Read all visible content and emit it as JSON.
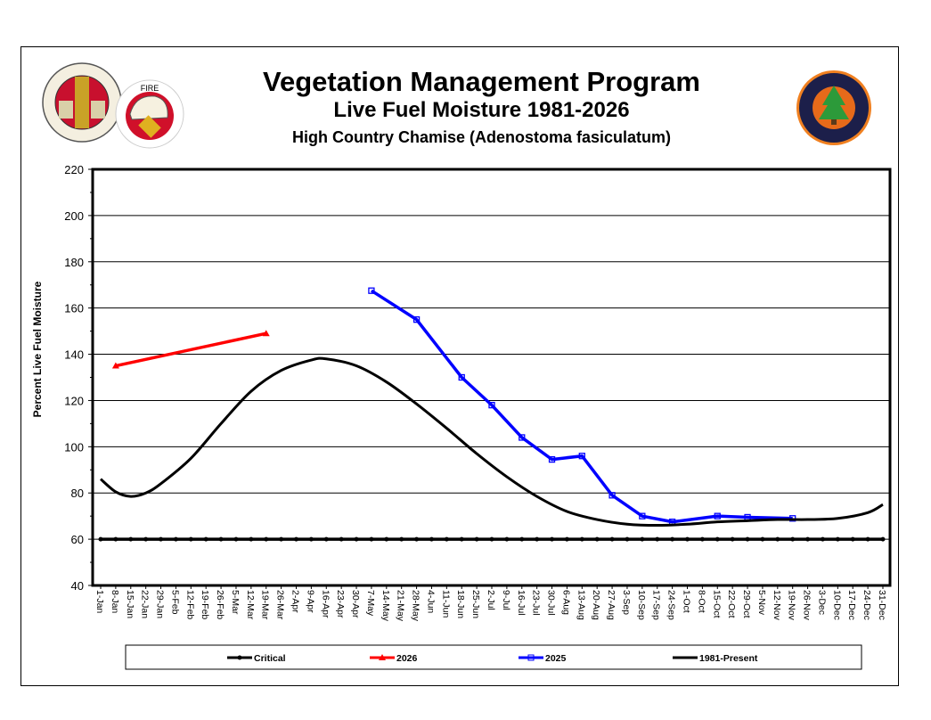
{
  "header": {
    "title": "Vegetation Management Program",
    "subtitle": "Live Fuel Moisture 1981-2026",
    "species": "High Country Chamise (Adenostoma fasiculatum)"
  },
  "logos": {
    "county_seal": "COUNTY OF LOS ANGELES CALIFORNIA",
    "fire_department": "FIRE DEPARTMENT",
    "forestry_division": "FORESTRY DIVISION EST. 1911"
  },
  "chart_data": {
    "type": "line",
    "title": "Live Fuel Moisture 1981-2026",
    "ylabel": "Percent Live Fuel Moisture",
    "xlabel": "",
    "ylim": [
      40,
      220
    ],
    "yticks": [
      40,
      60,
      80,
      100,
      120,
      140,
      160,
      180,
      200,
      220
    ],
    "grid": true,
    "legend": "bottom",
    "categories": [
      "1-Jan",
      "8-Jan",
      "15-Jan",
      "22-Jan",
      "29-Jan",
      "5-Feb",
      "12-Feb",
      "19-Feb",
      "26-Feb",
      "5-Mar",
      "12-Mar",
      "19-Mar",
      "26-Mar",
      "2-Apr",
      "9-Apr",
      "16-Apr",
      "23-Apr",
      "30-Apr",
      "7-May",
      "14-May",
      "21-May",
      "28-May",
      "4-Jun",
      "11-Jun",
      "18-Jun",
      "25-Jun",
      "2-Jul",
      "9-Jul",
      "16-Jul",
      "23-Jul",
      "30-Jul",
      "6-Aug",
      "13-Aug",
      "20-Aug",
      "27-Aug",
      "3-Sep",
      "10-Sep",
      "17-Sep",
      "24-Sep",
      "1-Oct",
      "8-Oct",
      "15-Oct",
      "22-Oct",
      "29-Oct",
      "5-Nov",
      "12-Nov",
      "19-Nov",
      "26-Nov",
      "3-Dec",
      "10-Dec",
      "17-Dec",
      "24-Dec",
      "31-Dec"
    ],
    "series": [
      {
        "name": "Critical",
        "color": "#000000",
        "marker": "dot",
        "points": [
          [
            "1-Jan",
            60
          ],
          [
            "31-Dec",
            60
          ]
        ],
        "all_categories": true
      },
      {
        "name": "2026",
        "color": "#ff0000",
        "marker": "triangle",
        "points": [
          [
            "8-Jan",
            135
          ],
          [
            "19-Mar",
            149
          ]
        ]
      },
      {
        "name": "2025",
        "color": "#0000ff",
        "marker": "square",
        "points": [
          [
            "7-May",
            167.5
          ],
          [
            "28-May",
            155
          ],
          [
            "18-Jun",
            130
          ],
          [
            "2-Jul",
            118
          ],
          [
            "16-Jul",
            104
          ],
          [
            "30-Jul",
            94.5
          ],
          [
            "13-Aug",
            96
          ],
          [
            "27-Aug",
            79
          ],
          [
            "10-Sep",
            70
          ],
          [
            "24-Sep",
            67.5
          ],
          [
            "15-Oct",
            70
          ],
          [
            "29-Oct",
            69.5
          ],
          [
            "19-Nov",
            69
          ]
        ]
      },
      {
        "name": "1981-Present",
        "color": "#000000",
        "marker": "none",
        "smooth": true,
        "points": [
          [
            "1-Jan",
            86
          ],
          [
            "8-Jan",
            80.5
          ],
          [
            "15-Jan",
            78.5
          ],
          [
            "22-Jan",
            80
          ],
          [
            "29-Jan",
            84
          ],
          [
            "12-Feb",
            95
          ],
          [
            "26-Feb",
            110
          ],
          [
            "12-Mar",
            124
          ],
          [
            "26-Mar",
            133
          ],
          [
            "9-Apr",
            137.5
          ],
          [
            "16-Apr",
            138
          ],
          [
            "30-Apr",
            135
          ],
          [
            "14-May",
            128
          ],
          [
            "28-May",
            118.5
          ],
          [
            "11-Jun",
            108
          ],
          [
            "25-Jun",
            97
          ],
          [
            "9-Jul",
            87
          ],
          [
            "23-Jul",
            78.5
          ],
          [
            "6-Aug",
            72
          ],
          [
            "20-Aug",
            68.5
          ],
          [
            "3-Sep",
            66.5
          ],
          [
            "17-Sep",
            66
          ],
          [
            "1-Oct",
            66.5
          ],
          [
            "15-Oct",
            67.5
          ],
          [
            "29-Oct",
            68
          ],
          [
            "12-Nov",
            68.5
          ],
          [
            "26-Nov",
            68.5
          ],
          [
            "10-Dec",
            69
          ],
          [
            "24-Dec",
            71.5
          ],
          [
            "31-Dec",
            75
          ]
        ]
      }
    ]
  }
}
